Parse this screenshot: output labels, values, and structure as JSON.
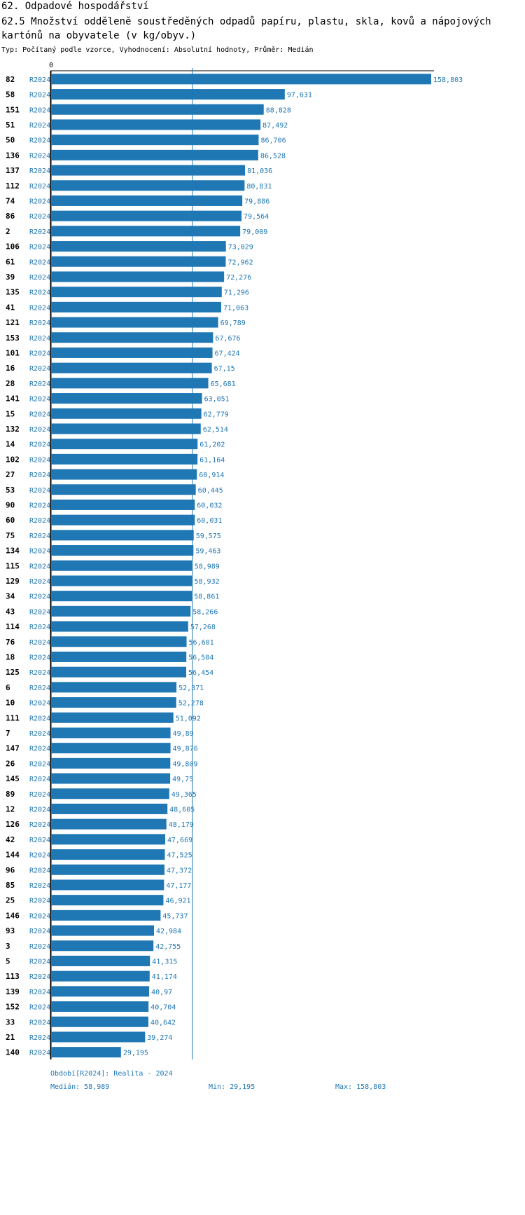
{
  "header": {
    "title": "62. Odpadové hospodářství",
    "subtitle": "62.5 Množství odděleně soustředěných odpadů papíru, plastu, skla, kovů a nápojových kartónů na obyvatele (v kg/obyv.)",
    "type_line": "Typ: Počítaný podle vzorce, Vyhodnocení: Absolutní hodnoty, Průměr: Medián"
  },
  "colors": {
    "bar": "#1f77b4",
    "label": "#1f77b4",
    "axis": "#000000"
  },
  "chart_data": {
    "type": "bar",
    "orientation": "horizontal",
    "period": "R2024",
    "axis_zero_label": "0",
    "xlim": [
      0,
      158.803
    ],
    "median": 58.989,
    "categories": [
      "82",
      "58",
      "151",
      "51",
      "50",
      "136",
      "137",
      "112",
      "74",
      "86",
      "2",
      "106",
      "61",
      "39",
      "135",
      "41",
      "121",
      "153",
      "101",
      "16",
      "28",
      "141",
      "15",
      "132",
      "14",
      "102",
      "27",
      "53",
      "90",
      "60",
      "75",
      "134",
      "115",
      "129",
      "34",
      "43",
      "114",
      "76",
      "18",
      "125",
      "6",
      "10",
      "111",
      "7",
      "147",
      "26",
      "145",
      "89",
      "12",
      "126",
      "42",
      "144",
      "96",
      "85",
      "25",
      "146",
      "93",
      "3",
      "5",
      "113",
      "139",
      "152",
      "33",
      "21",
      "140"
    ],
    "values": [
      158.803,
      97.631,
      88.828,
      87.492,
      86.706,
      86.528,
      81.036,
      80.831,
      79.886,
      79.564,
      79.009,
      73.029,
      72.962,
      72.276,
      71.296,
      71.063,
      69.789,
      67.676,
      67.424,
      67.15,
      65.681,
      63.051,
      62.779,
      62.514,
      61.202,
      61.164,
      60.914,
      60.445,
      60.032,
      60.031,
      59.575,
      59.463,
      58.989,
      58.932,
      58.861,
      58.266,
      57.268,
      56.601,
      56.504,
      56.454,
      52.371,
      52.278,
      51.092,
      49.89,
      49.876,
      49.809,
      49.75,
      49.365,
      48.605,
      48.179,
      47.669,
      47.525,
      47.372,
      47.177,
      46.921,
      45.737,
      42.984,
      42.755,
      41.315,
      41.174,
      40.97,
      40.704,
      40.642,
      39.274,
      29.195
    ],
    "value_labels": [
      "158,803",
      "97,631",
      "88,828",
      "87,492",
      "86,706",
      "86,528",
      "81,036",
      "80,831",
      "79,886",
      "79,564",
      "79,009",
      "73,029",
      "72,962",
      "72,276",
      "71,296",
      "71,063",
      "69,789",
      "67,676",
      "67,424",
      "67,15",
      "65,681",
      "63,051",
      "62,779",
      "62,514",
      "61,202",
      "61,164",
      "60,914",
      "60,445",
      "60,032",
      "60,031",
      "59,575",
      "59,463",
      "58,989",
      "58,932",
      "58,861",
      "58,266",
      "57,268",
      "56,601",
      "56,504",
      "56,454",
      "52,371",
      "52,278",
      "51,092",
      "49,89",
      "49,876",
      "49,809",
      "49,75",
      "49,365",
      "48,605",
      "48,179",
      "47,669",
      "47,525",
      "47,372",
      "47,177",
      "46,921",
      "45,737",
      "42,984",
      "42,755",
      "41,315",
      "41,174",
      "40,97",
      "40,704",
      "40,642",
      "39,274",
      "29,195"
    ]
  },
  "footer": {
    "period_line": "Období[R2024]: Realita - 2024",
    "median_label": "Medián: 58,989",
    "min_label": "Min: 29,195",
    "max_label": "Max: 158,803"
  }
}
